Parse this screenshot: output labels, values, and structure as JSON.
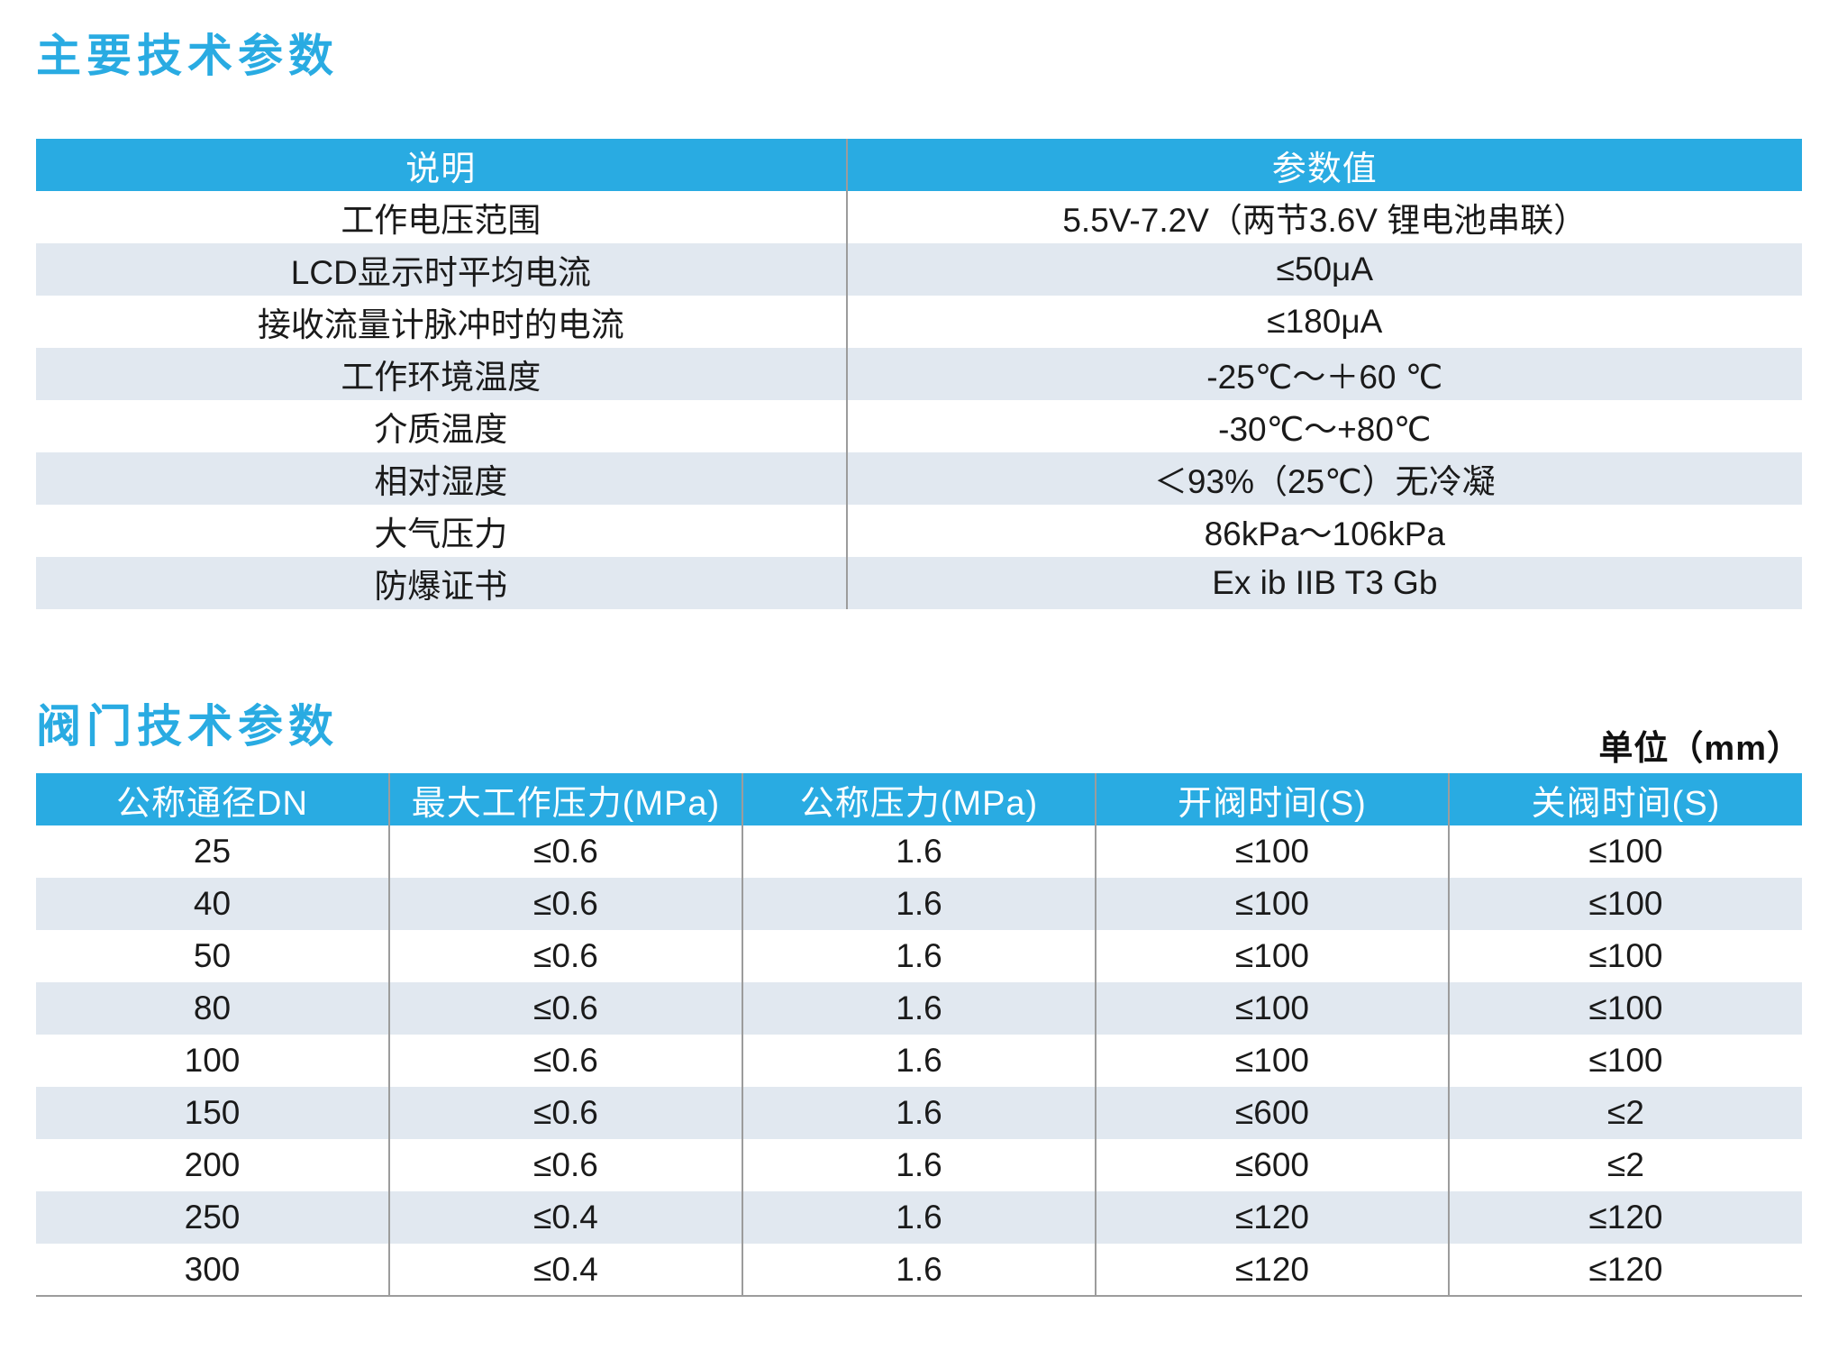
{
  "colors": {
    "accent": "#29ABE2",
    "stripe_row": "#E1E8F0",
    "divider_line": "#9C9C9C",
    "header_text": "#FFFFFF",
    "body_text": "#1A1A1A"
  },
  "section1": {
    "title": "主要技术参数",
    "table": {
      "headers": [
        "说明",
        "参数值"
      ],
      "rows": [
        [
          "工作电压范围",
          "5.5V-7.2V（两节3.6V 锂电池串联）"
        ],
        [
          "LCD显示时平均电流",
          "≤50μA"
        ],
        [
          "接收流量计脉冲时的电流",
          "≤180μA"
        ],
        [
          "工作环境温度",
          "-25℃～＋60 ℃"
        ],
        [
          "介质温度",
          "-30℃～+80℃"
        ],
        [
          "相对湿度",
          "＜93%（25℃）无冷凝"
        ],
        [
          "大气压力",
          "86kPa～106kPa"
        ],
        [
          "防爆证书",
          "Ex ib IIB T3 Gb"
        ]
      ]
    }
  },
  "section2": {
    "title": "阀门技术参数",
    "unit_note": "单位（mm）",
    "table": {
      "headers": [
        "公称通径DN",
        "最大工作压力(MPa)",
        "公称压力(MPa)",
        "开阀时间(S)",
        "关阀时间(S)"
      ],
      "rows": [
        [
          "25",
          "≤0.6",
          "1.6",
          "≤100",
          "≤100"
        ],
        [
          "40",
          "≤0.6",
          "1.6",
          "≤100",
          "≤100"
        ],
        [
          "50",
          "≤0.6",
          "1.6",
          "≤100",
          "≤100"
        ],
        [
          "80",
          "≤0.6",
          "1.6",
          "≤100",
          "≤100"
        ],
        [
          "100",
          "≤0.6",
          "1.6",
          "≤100",
          "≤100"
        ],
        [
          "150",
          "≤0.6",
          "1.6",
          "≤600",
          "≤2"
        ],
        [
          "200",
          "≤0.6",
          "1.6",
          "≤600",
          "≤2"
        ],
        [
          "250",
          "≤0.4",
          "1.6",
          "≤120",
          "≤120"
        ],
        [
          "300",
          "≤0.4",
          "1.6",
          "≤120",
          "≤120"
        ]
      ]
    }
  }
}
